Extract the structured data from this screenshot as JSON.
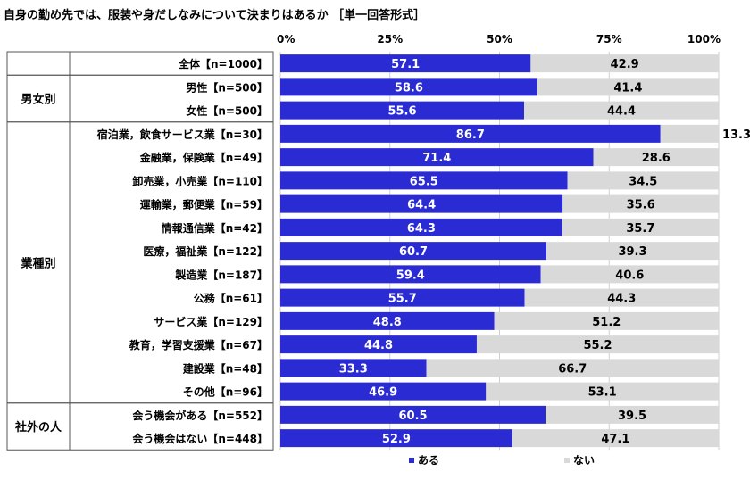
{
  "title": "自身の勤め先では、服装や身だしなみについて決まりはあるか ［単一回答形式］",
  "chart_data": {
    "type": "bar",
    "orientation": "horizontal",
    "stacked": true,
    "xlim": [
      0,
      100
    ],
    "ticks": [
      "0%",
      "25%",
      "50%",
      "75%",
      "100%"
    ],
    "grid": true,
    "legend_position": "bottom",
    "colors": {
      "aru": "#2b2bd4",
      "nai": "#d9d9d9"
    },
    "groups": [
      {
        "label": "",
        "start": 0,
        "end": 0
      },
      {
        "label": "男女別",
        "start": 1,
        "end": 2
      },
      {
        "label": "業種別",
        "start": 3,
        "end": 14
      },
      {
        "label": "社外の人",
        "start": 15,
        "end": 16
      }
    ],
    "categories": [
      "全体【n=1000】",
      "男性【n=500】",
      "女性【n=500】",
      "宿泊業，飲食サービス業【n=30】",
      "金融業，保険業【n=49】",
      "卸売業，小売業【n=110】",
      "運輸業，郵便業【n=59】",
      "情報通信業【n=42】",
      "医療，福祉業【n=122】",
      "製造業【n=187】",
      "公務【n=61】",
      "サービス業【n=129】",
      "教育，学習支援業【n=67】",
      "建設業【n=48】",
      "その他【n=96】",
      "会う機会がある【n=552】",
      "会う機会はない【n=448】"
    ],
    "series": [
      {
        "name": "ある",
        "values": [
          57.1,
          58.6,
          55.6,
          86.7,
          71.4,
          65.5,
          64.4,
          64.3,
          60.7,
          59.4,
          55.7,
          48.8,
          44.8,
          33.3,
          46.9,
          60.5,
          52.9
        ]
      },
      {
        "name": "ない",
        "values": [
          42.9,
          41.4,
          44.4,
          13.3,
          28.6,
          34.5,
          35.6,
          35.7,
          39.3,
          40.6,
          44.3,
          51.2,
          55.2,
          66.7,
          53.1,
          39.5,
          47.1
        ]
      }
    ]
  }
}
